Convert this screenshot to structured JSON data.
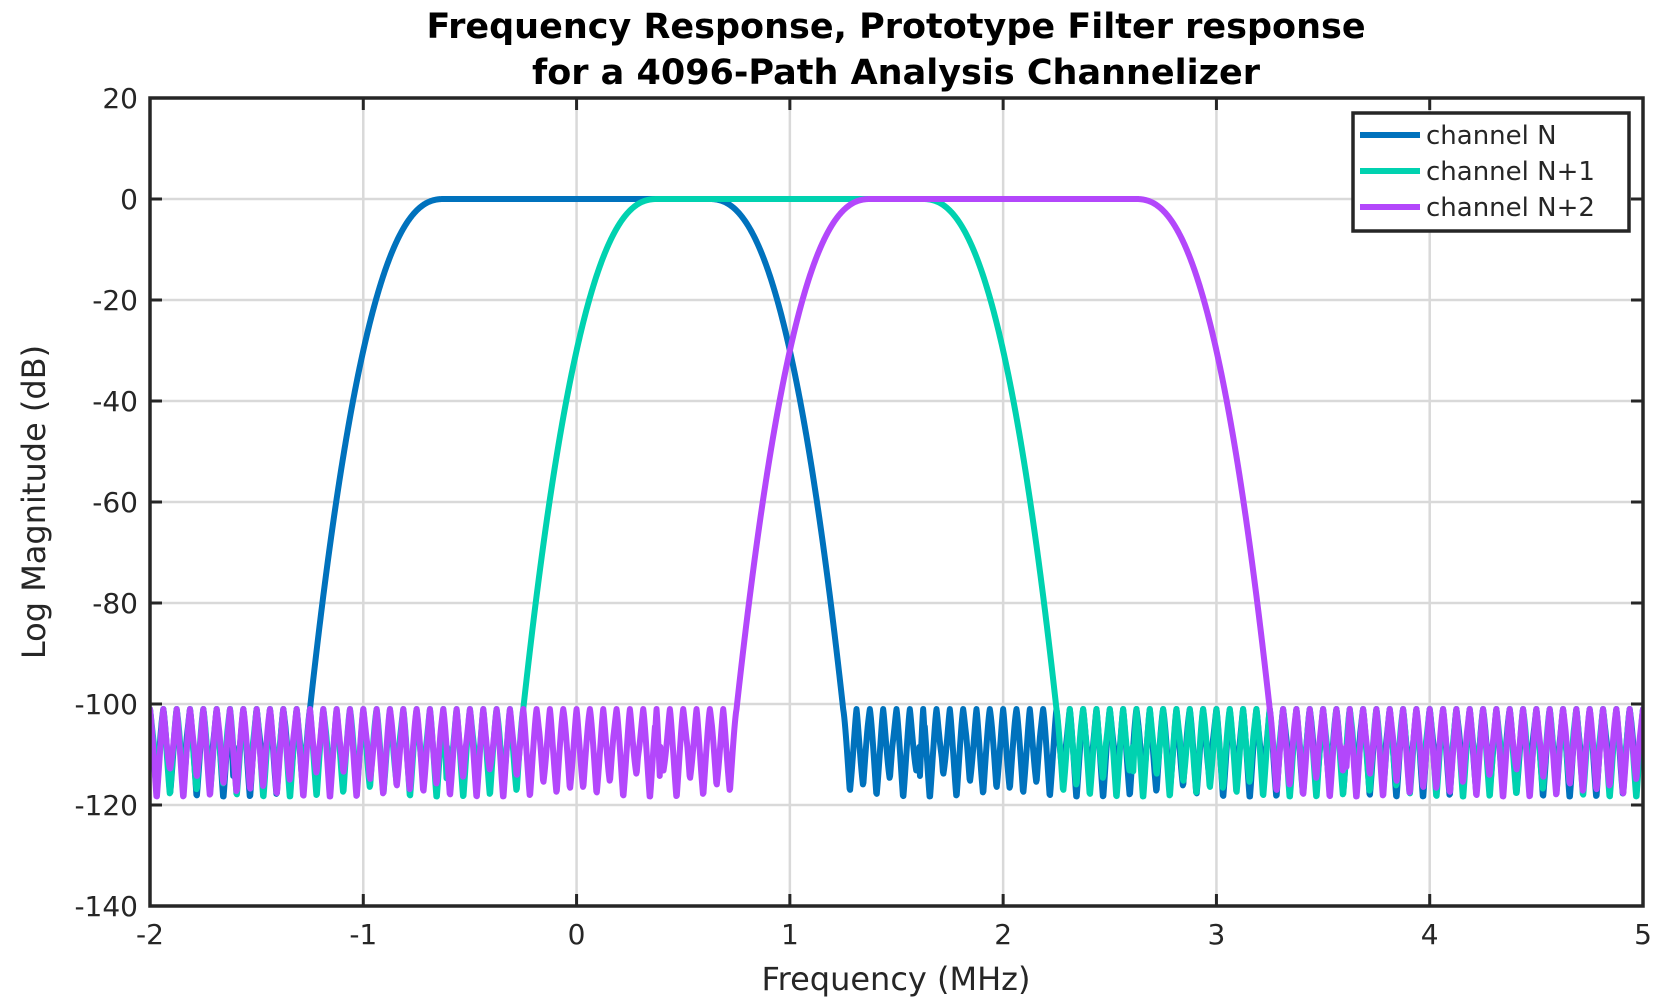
{
  "chart_data": {
    "type": "line",
    "title": [
      "Frequency Response, Prototype Filter response",
      "for a 4096-Path Analysis Channelizer"
    ],
    "xlabel": "Frequency (MHz)",
    "ylabel": "Log Magnitude (dB)",
    "xlim": [
      -2,
      5
    ],
    "ylim": [
      -140,
      20
    ],
    "xticks": [
      -2,
      -1,
      0,
      1,
      2,
      3,
      4,
      5
    ],
    "xtick_labels": [
      "-2",
      "-1",
      "0",
      "1",
      "2",
      "3",
      "4",
      "5"
    ],
    "yticks": [
      20,
      0,
      -20,
      -40,
      -60,
      -80,
      -100,
      -120,
      -140
    ],
    "ytick_labels": [
      "20",
      "0",
      "-20",
      "-40",
      "-60",
      "-80",
      "-100",
      "-120",
      "-140"
    ],
    "grid": true,
    "legend_position": "top-right",
    "series": [
      {
        "name": "channel N",
        "color": "#0072bd",
        "center_mhz": 0,
        "passband_edges_mhz": [
          -0.62,
          0.62
        ],
        "stopband_edges_mhz": [
          -1.25,
          1.25
        ],
        "passband_db": 0,
        "sidelobe_peak_db": -101,
        "deep_nulls": [
          [
            -1.62,
            -130
          ],
          [
            1.62,
            -130
          ]
        ]
      },
      {
        "name": "channel N+1",
        "color": "#00d2b0",
        "center_mhz": 1,
        "passband_edges_mhz": [
          0.38,
          1.62
        ],
        "stopband_edges_mhz": [
          -0.25,
          2.25
        ],
        "passband_db": 0,
        "sidelobe_peak_db": -101,
        "deep_nulls": [
          [
            -0.62,
            -131
          ],
          [
            2.62,
            -128
          ]
        ]
      },
      {
        "name": "channel N+2",
        "color": "#b347fb",
        "center_mhz": 2,
        "passband_edges_mhz": [
          1.38,
          2.62
        ],
        "stopband_edges_mhz": [
          0.75,
          3.25
        ],
        "passband_db": 0,
        "sidelobe_peak_db": -101,
        "deep_nulls": [
          [
            0.38,
            -130
          ],
          [
            3.62,
            -126
          ]
        ]
      }
    ]
  }
}
